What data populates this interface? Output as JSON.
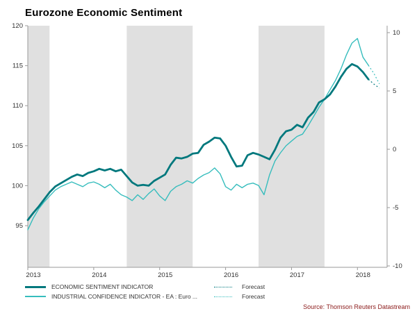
{
  "title": "Eurozone Economic Sentiment",
  "source": "Source: Thomson Reuters Datastream",
  "colors": {
    "esi": "#00787d",
    "ic": "#36bdbd",
    "band": "#e0e0e0",
    "axis": "#9a9a9a",
    "tick_text": "#333333",
    "source_text": "#8b1a1a",
    "title_text": "#000000"
  },
  "legend": {
    "rows": [
      {
        "label": "ECONOMIC SENTIMENT INDICATOR",
        "forecast_label": "Forecast"
      },
      {
        "label": "INDUSTRIAL CONFIDENCE INDICATOR - EA : Euro ...",
        "forecast_label": "Forecast"
      }
    ]
  },
  "chart_data": {
    "type": "line",
    "title": "Eurozone Economic Sentiment",
    "x_range": [
      2013.0,
      2018.45
    ],
    "x_ticks": [
      2013,
      2014,
      2015,
      2016,
      2017,
      2018
    ],
    "x_frequency": "monthly",
    "left_axis": {
      "ticks": [
        120,
        115,
        110,
        105,
        100,
        95
      ],
      "side": "left"
    },
    "right_axis": {
      "ticks": [
        10,
        5,
        0,
        -5,
        -10
      ],
      "side": "right"
    },
    "bands": [
      [
        2013.0,
        2013.33
      ],
      [
        2014.5,
        2015.5
      ],
      [
        2016.5,
        2017.5
      ]
    ],
    "forecast_start_index": 62,
    "series": [
      {
        "name": "ECONOMIC SENTIMENT INDICATOR",
        "axis": "left",
        "style": "thick",
        "color_key": "esi",
        "values": [
          95.7,
          96.6,
          97.4,
          98.3,
          99.2,
          99.9,
          100.3,
          100.7,
          101.1,
          101.4,
          101.2,
          101.6,
          101.8,
          102.1,
          101.9,
          102.1,
          101.8,
          102.0,
          101.2,
          100.4,
          100.0,
          100.1,
          100.0,
          100.6,
          101.0,
          101.4,
          102.6,
          103.5,
          103.4,
          103.6,
          104.0,
          104.1,
          105.1,
          105.5,
          106.0,
          105.9,
          105.0,
          103.6,
          102.4,
          102.5,
          103.8,
          104.1,
          103.9,
          103.6,
          103.3,
          104.5,
          106.0,
          106.8,
          107.0,
          107.6,
          107.3,
          108.5,
          109.2,
          110.4,
          110.8,
          111.4,
          112.4,
          113.6,
          114.6,
          115.2,
          114.9,
          114.2,
          113.3,
          112.7,
          112.2
        ]
      },
      {
        "name": "INDUSTRIAL CONFIDENCE INDICATOR - EA : Euro ...",
        "axis": "right",
        "style": "thin",
        "color_key": "ic",
        "values": [
          -6.9,
          -5.9,
          -5.1,
          -4.5,
          -4.0,
          -3.5,
          -3.2,
          -3.0,
          -2.8,
          -3.0,
          -3.2,
          -2.9,
          -2.8,
          -3.0,
          -3.3,
          -3.0,
          -3.5,
          -3.9,
          -4.1,
          -4.4,
          -3.9,
          -4.3,
          -3.8,
          -3.4,
          -4.0,
          -4.4,
          -3.6,
          -3.2,
          -3.0,
          -2.7,
          -2.9,
          -2.5,
          -2.2,
          -2.0,
          -1.6,
          -2.1,
          -3.2,
          -3.5,
          -3.0,
          -3.3,
          -3.0,
          -2.9,
          -3.1,
          -3.9,
          -2.2,
          -1.0,
          -0.3,
          0.3,
          0.7,
          1.1,
          1.3,
          2.0,
          2.8,
          3.6,
          4.3,
          5.1,
          5.9,
          6.9,
          8.1,
          9.1,
          9.5,
          7.9,
          7.2,
          6.5,
          5.6
        ]
      }
    ]
  }
}
